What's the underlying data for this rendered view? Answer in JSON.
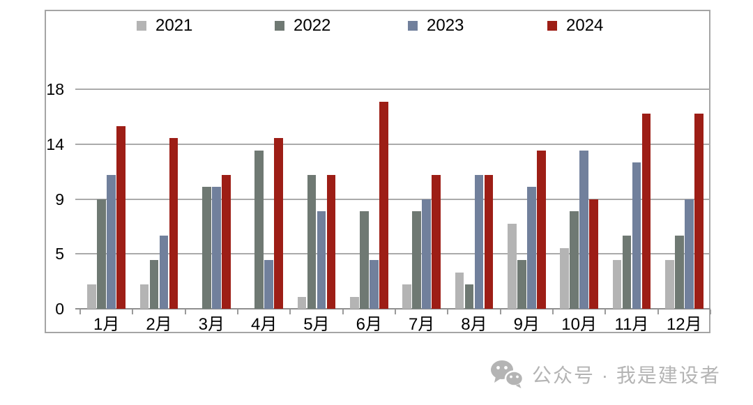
{
  "chart_data": {
    "type": "bar",
    "title": "",
    "xlabel": "",
    "ylabel": "",
    "categories": [
      "1月",
      "2月",
      "3月",
      "4月",
      "5月",
      "6月",
      "7月",
      "8月",
      "9月",
      "10月",
      "11月",
      "12月"
    ],
    "series": [
      {
        "name": "2021",
        "color": "#b4b4b4",
        "values": [
          2,
          2,
          0,
          0,
          1,
          1,
          2,
          3,
          7,
          5,
          4,
          4
        ]
      },
      {
        "name": "2022",
        "color": "#6f7973",
        "values": [
          9,
          4,
          10,
          13,
          11,
          8,
          8,
          2,
          4,
          8,
          6,
          6
        ]
      },
      {
        "name": "2023",
        "color": "#71809c",
        "values": [
          11,
          6,
          10,
          4,
          8,
          4,
          9,
          11,
          10,
          13,
          12,
          9
        ]
      },
      {
        "name": "2024",
        "color": "#9d1e16",
        "values": [
          15,
          14,
          11,
          14,
          11,
          17,
          11,
          11,
          13,
          9,
          16,
          16
        ]
      }
    ],
    "y_axis": {
      "range": [
        0,
        18
      ],
      "ticks": [
        {
          "label": "0",
          "value": 0
        },
        {
          "label": "5",
          "value": 4.5
        },
        {
          "label": "9",
          "value": 9
        },
        {
          "label": "14",
          "value": 13.5
        },
        {
          "label": "18",
          "value": 18
        }
      ]
    },
    "legend_position": "top",
    "grid": true,
    "colors": {
      "gridline": "#aaaaaa",
      "frame_border": "#a5a5a5",
      "axis_text": "#000000"
    }
  },
  "footer": {
    "wechat_label": "公众号 · 我是建设者",
    "color": "#b4b4b4"
  }
}
